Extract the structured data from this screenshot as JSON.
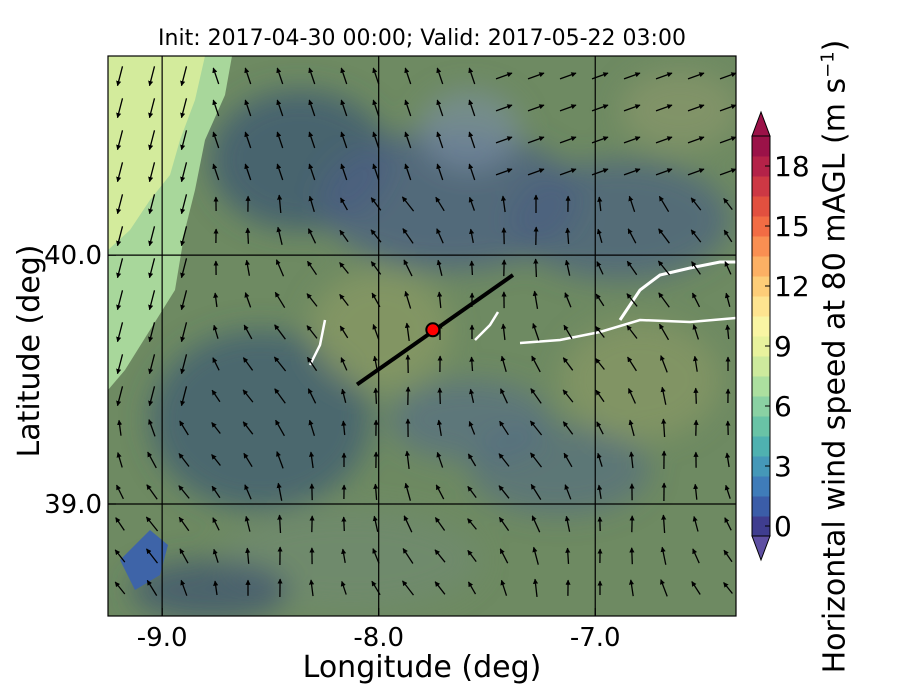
{
  "chart_data": {
    "type": "heatmap",
    "title": "Init: 2017-04-30 00:00; Valid: 2017-05-22 03:00",
    "xlabel": "Longitude (deg)",
    "ylabel": "Latitude (deg)",
    "xlim": [
      -9.25,
      -6.35
    ],
    "ylim": [
      38.55,
      40.8
    ],
    "x_ticks": [
      -9.0,
      -8.0,
      -7.0
    ],
    "y_ticks": [
      39.0,
      40.0
    ],
    "x_tick_labels": [
      "-9.0",
      "-8.0",
      "-7.0"
    ],
    "y_tick_labels": [
      "39.0",
      "40.0"
    ],
    "grid": true,
    "colorbar": {
      "label_main": "Horizontal wind speed at 80 mAGL (m s",
      "label_exp": "−1",
      "label_close": ")",
      "min": 0,
      "max": 20,
      "step": 1,
      "tick_values": [
        0,
        3,
        6,
        9,
        12,
        15,
        18
      ],
      "tick_labels": [
        "0",
        "3",
        "6",
        "9",
        "12",
        "15",
        "18"
      ],
      "extend": "both",
      "colors": [
        "#3f3d8f",
        "#3b5da8",
        "#3f7cb9",
        "#4598b8",
        "#4fb1b0",
        "#69c3a6",
        "#8ad1a3",
        "#acdf9f",
        "#cdea9d",
        "#e8f29d",
        "#f9f5a3",
        "#fee490",
        "#fdcd78",
        "#fcb064",
        "#f98f52",
        "#f26c44",
        "#e2503f",
        "#cd3844",
        "#b42248",
        "#9b1248"
      ]
    },
    "site_marker": {
      "lon": -7.75,
      "lat": 39.7,
      "color": "#ff0000"
    },
    "cross_section_line": {
      "start": [
        -8.1,
        39.48
      ],
      "end": [
        -7.38,
        39.92
      ],
      "color": "#000000"
    },
    "field_background": "#6e8a62",
    "wind_field": "southeasterly-to-northwesterly flow, ~5-7 m/s over land; strong northerly flow ~6-9 m/s along the western coast"
  }
}
